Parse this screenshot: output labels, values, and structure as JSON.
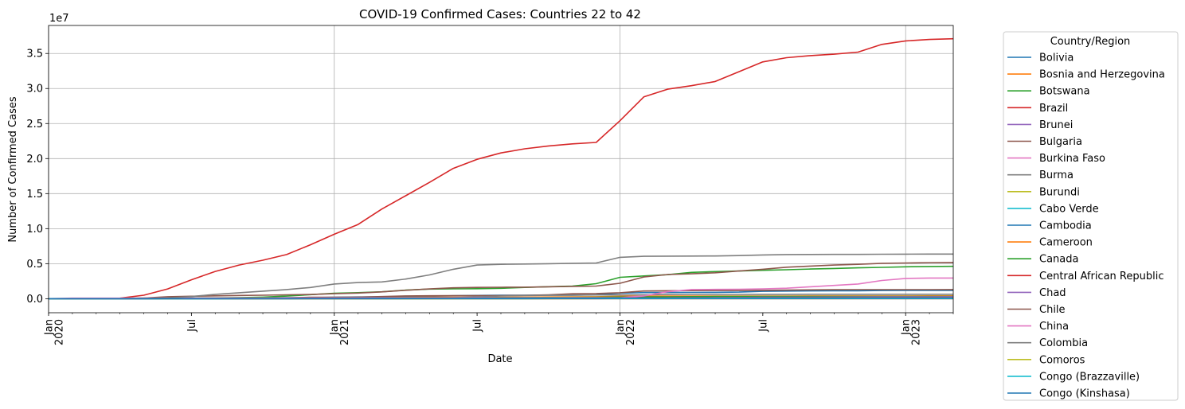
{
  "chart_data": {
    "type": "line",
    "title": "COVID-19 Confirmed Cases: Countries 22 to 42",
    "xlabel": "Date",
    "ylabel": "Number of Confirmed Cases",
    "y_offset_label": "1e7",
    "ylim": [
      -2000000,
      39000000
    ],
    "yticks": [
      {
        "value": 0,
        "label": "0.0"
      },
      {
        "value": 5000000,
        "label": "0.5"
      },
      {
        "value": 10000000,
        "label": "1.0"
      },
      {
        "value": 15000000,
        "label": "1.5"
      },
      {
        "value": 20000000,
        "label": "2.0"
      },
      {
        "value": 25000000,
        "label": "2.5"
      },
      {
        "value": 30000000,
        "label": "3.0"
      },
      {
        "value": 35000000,
        "label": "3.5"
      }
    ],
    "xlim": [
      "2020-01",
      "2023-03"
    ],
    "xticks": [
      {
        "date": "2020-01",
        "label": "Jan",
        "year": "2020"
      },
      {
        "date": "2020-07",
        "label": "Jul",
        "year": ""
      },
      {
        "date": "2021-01",
        "label": "Jan",
        "year": "2021"
      },
      {
        "date": "2021-07",
        "label": "Jul",
        "year": ""
      },
      {
        "date": "2022-01",
        "label": "Jan",
        "year": "2022"
      },
      {
        "date": "2022-07",
        "label": "Jul",
        "year": ""
      },
      {
        "date": "2023-01",
        "label": "Jan",
        "year": "2023"
      }
    ],
    "grid": true,
    "legend": {
      "title": "Country/Region",
      "placement": "outside right"
    },
    "x": [
      "2020-01",
      "2020-02",
      "2020-03",
      "2020-04",
      "2020-05",
      "2020-06",
      "2020-07",
      "2020-08",
      "2020-09",
      "2020-10",
      "2020-11",
      "2020-12",
      "2021-01",
      "2021-02",
      "2021-03",
      "2021-04",
      "2021-05",
      "2021-06",
      "2021-07",
      "2021-08",
      "2021-09",
      "2021-10",
      "2021-11",
      "2021-12",
      "2022-01",
      "2022-02",
      "2022-03",
      "2022-04",
      "2022-05",
      "2022-06",
      "2022-07",
      "2022-08",
      "2022-09",
      "2022-10",
      "2022-11",
      "2022-12",
      "2023-01",
      "2023-02",
      "2023-03"
    ],
    "series": [
      {
        "name": "Bolivia",
        "color": "#1f77b4",
        "values": [
          0,
          0,
          0,
          0,
          10000,
          30000,
          70000,
          110000,
          130000,
          140000,
          145000,
          160000,
          200000,
          250000,
          270000,
          300000,
          350000,
          420000,
          470000,
          490000,
          500000,
          505000,
          515000,
          560000,
          780000,
          870000,
          890000,
          900000,
          910000,
          940000,
          1050000,
          1090000,
          1110000,
          1130000,
          1140000,
          1170000,
          1190000,
          1195000,
          1197000
        ]
      },
      {
        "name": "Bosnia and Herzegovina",
        "color": "#ff7f0e",
        "values": [
          0,
          0,
          0,
          1000,
          2000,
          3000,
          10000,
          20000,
          30000,
          50000,
          90000,
          110000,
          120000,
          130000,
          170000,
          190000,
          200000,
          205000,
          206000,
          207000,
          230000,
          250000,
          270000,
          280000,
          340000,
          370000,
          375000,
          377000,
          378000,
          380000,
          385000,
          390000,
          395000,
          398000,
          400000,
          401000,
          402000,
          403000,
          403500
        ]
      },
      {
        "name": "Botswana",
        "color": "#2ca02c",
        "values": [
          0,
          0,
          0,
          0,
          0,
          0,
          1000,
          2000,
          3000,
          6000,
          10000,
          14000,
          23000,
          32000,
          40000,
          44000,
          50000,
          60000,
          100000,
          150000,
          170000,
          180000,
          190000,
          205000,
          240000,
          260000,
          265000,
          295000,
          315000,
          322000,
          324000,
          325000,
          326000,
          326500,
          327000,
          328000,
          329000,
          329500,
          330000
        ]
      },
      {
        "name": "Brazil",
        "color": "#d62728",
        "values": [
          0,
          0,
          5000,
          80000,
          500000,
          1400000,
          2700000,
          3900000,
          4800000,
          5500000,
          6300000,
          7700000,
          9200000,
          10600000,
          12800000,
          14700000,
          16600000,
          18600000,
          19900000,
          20800000,
          21400000,
          21800000,
          22100000,
          22300000,
          25400000,
          28800000,
          29900000,
          30400000,
          31000000,
          32400000,
          33800000,
          34400000,
          34700000,
          34900000,
          35200000,
          36300000,
          36800000,
          37000000,
          37100000
        ]
      },
      {
        "name": "Brunei",
        "color": "#9467bd",
        "values": [
          0,
          0,
          0,
          0,
          0,
          0,
          0,
          0,
          0,
          0,
          0,
          0,
          0,
          0,
          0,
          0,
          0,
          0,
          0,
          0,
          0,
          5000,
          14000,
          15000,
          16000,
          30000,
          140000,
          150000,
          160000,
          170000,
          200000,
          220000,
          230000,
          240000,
          250000,
          260000,
          270000,
          275000,
          278000
        ]
      },
      {
        "name": "Bulgaria",
        "color": "#8c564b",
        "values": [
          0,
          0,
          0,
          1000,
          2000,
          4000,
          10000,
          15000,
          20000,
          30000,
          120000,
          200000,
          215000,
          230000,
          300000,
          400000,
          420000,
          425000,
          430000,
          440000,
          480000,
          560000,
          700000,
          740000,
          850000,
          1100000,
          1140000,
          1155000,
          1165000,
          1170000,
          1190000,
          1230000,
          1260000,
          1280000,
          1290000,
          1295000,
          1298000,
          1299000,
          1300000
        ]
      },
      {
        "name": "Burkina Faso",
        "color": "#e377c2",
        "values": [
          0,
          0,
          0,
          600,
          800,
          900,
          1100,
          1300,
          1500,
          2500,
          3000,
          6000,
          11000,
          12000,
          13000,
          13300,
          13500,
          13600,
          13800,
          14000,
          14400,
          15200,
          16500,
          18000,
          20000,
          20500,
          20800,
          21000,
          21000,
          21100,
          21400,
          21600,
          21700,
          21800,
          22000,
          22000,
          22100,
          22100,
          22100
        ]
      },
      {
        "name": "Burma",
        "color": "#7f7f7f",
        "values": [
          0,
          0,
          0,
          100,
          200,
          300,
          350,
          400,
          5000,
          40000,
          80000,
          120000,
          130000,
          140000,
          142000,
          143000,
          144000,
          145000,
          250000,
          380000,
          450000,
          490000,
          510000,
          530000,
          535000,
          550000,
          600000,
          610000,
          612000,
          613000,
          620000,
          625000,
          630000,
          633000,
          634000,
          635000,
          636000,
          637000,
          637000
        ]
      },
      {
        "name": "Burundi",
        "color": "#bcbd22",
        "values": [
          0,
          0,
          0,
          10,
          40,
          100,
          300,
          400,
          500,
          600,
          700,
          800,
          1500,
          2200,
          2700,
          3500,
          4500,
          5500,
          6500,
          10000,
          15000,
          18000,
          20000,
          22000,
          30000,
          40000,
          42000,
          42500,
          43000,
          44000,
          46000,
          48000,
          49000,
          50000,
          50500,
          51000,
          52000,
          53000,
          54000
        ]
      },
      {
        "name": "Cabo Verde",
        "color": "#17becf",
        "values": [
          0,
          0,
          0,
          100,
          500,
          1000,
          2000,
          3000,
          5000,
          7000,
          10000,
          11500,
          14000,
          16000,
          19000,
          23000,
          28000,
          32000,
          34000,
          35000,
          36000,
          37500,
          38000,
          38500,
          50000,
          55000,
          56000,
          56500,
          57000,
          58000,
          60000,
          61000,
          62000,
          62500,
          63000,
          63300,
          63500,
          63600,
          63700
        ]
      },
      {
        "name": "Cambodia",
        "color": "#1f77b4",
        "values": [
          0,
          1,
          1,
          120,
          122,
          130,
          180,
          270,
          280,
          290,
          300,
          370,
          450,
          500,
          2000,
          10000,
          25000,
          42000,
          70000,
          95000,
          110000,
          118000,
          120000,
          120500,
          121000,
          125000,
          133000,
          136000,
          136200,
          136300,
          136500,
          137000,
          137500,
          137800,
          138000,
          138200,
          138400,
          138600,
          138700
        ]
      },
      {
        "name": "Cameroon",
        "color": "#ff7f0e",
        "values": [
          0,
          0,
          0,
          1500,
          5000,
          12000,
          17000,
          19000,
          20500,
          21500,
          24000,
          26000,
          29000,
          35000,
          50000,
          65000,
          78000,
          80000,
          81000,
          83000,
          90000,
          100000,
          106000,
          108000,
          113000,
          118000,
          119000,
          119500,
          120000,
          121000,
          123000,
          123500,
          124000,
          124300,
          124500,
          124700,
          124800,
          124900,
          125000
        ]
      },
      {
        "name": "Canada",
        "color": "#2ca02c",
        "values": [
          0,
          20,
          500,
          50000,
          90000,
          105000,
          115000,
          125000,
          150000,
          230000,
          370000,
          580000,
          780000,
          860000,
          990000,
          1220000,
          1370000,
          1410000,
          1430000,
          1490000,
          1610000,
          1710000,
          1790000,
          2150000,
          3050000,
          3250000,
          3430000,
          3760000,
          3870000,
          3950000,
          4050000,
          4130000,
          4230000,
          4310000,
          4410000,
          4470000,
          4550000,
          4600000,
          4620000
        ]
      },
      {
        "name": "Central African Republic",
        "color": "#d62728",
        "values": [
          0,
          0,
          0,
          50,
          1000,
          3500,
          4600,
          4700,
          4800,
          4900,
          5000,
          5000,
          5100,
          5400,
          5600,
          6400,
          7000,
          7100,
          11000,
          11200,
          11400,
          11600,
          11700,
          12000,
          13000,
          14000,
          14300,
          14400,
          14500,
          14600,
          14800,
          14900,
          15000,
          15100,
          15200,
          15300,
          15300,
          15300,
          15300
        ]
      },
      {
        "name": "Chad",
        "color": "#9467bd",
        "values": [
          0,
          0,
          0,
          50,
          800,
          900,
          950,
          1000,
          1100,
          1400,
          1700,
          2100,
          3000,
          4000,
          4500,
          4800,
          4900,
          5000,
          5000,
          5000,
          5050,
          5100,
          5300,
          6000,
          7000,
          7300,
          7350,
          7400,
          7450,
          7500,
          7550,
          7600,
          7650,
          7660,
          7670,
          7680,
          7690,
          7695,
          7700
        ]
      },
      {
        "name": "Chile",
        "color": "#8c564b",
        "values": [
          0,
          0,
          2000,
          15000,
          100000,
          280000,
          350000,
          410000,
          460000,
          500000,
          550000,
          600000,
          720000,
          810000,
          980000,
          1200000,
          1400000,
          1560000,
          1610000,
          1630000,
          1650000,
          1700000,
          1760000,
          1800000,
          2200000,
          3100000,
          3450000,
          3550000,
          3700000,
          3950000,
          4200000,
          4500000,
          4650000,
          4800000,
          4900000,
          5050000,
          5100000,
          5150000,
          5180000
        ]
      },
      {
        "name": "China",
        "color": "#e377c2",
        "values": [
          10000,
          80000,
          82000,
          84000,
          84500,
          85000,
          88000,
          90000,
          90500,
          91000,
          92000,
          96000,
          100000,
          101000,
          102000,
          103000,
          104000,
          106000,
          110000,
          115000,
          120000,
          125000,
          130000,
          135000,
          140000,
          400000,
          1000000,
          1300000,
          1330000,
          1350000,
          1400000,
          1500000,
          1700000,
          1900000,
          2100000,
          2600000,
          2900000,
          2950000,
          2950000
        ]
      },
      {
        "name": "Colombia",
        "color": "#7f7f7f",
        "values": [
          0,
          0,
          1000,
          7000,
          30000,
          100000,
          300000,
          620000,
          850000,
          1080000,
          1300000,
          1600000,
          2100000,
          2300000,
          2400000,
          2800000,
          3400000,
          4200000,
          4800000,
          4900000,
          4950000,
          5000000,
          5050000,
          5100000,
          5900000,
          6050000,
          6080000,
          6090000,
          6100000,
          6150000,
          6250000,
          6300000,
          6310000,
          6320000,
          6330000,
          6350000,
          6360000,
          6365000,
          6370000
        ]
      },
      {
        "name": "Comoros",
        "color": "#bcbd22",
        "values": [
          0,
          0,
          0,
          0,
          100,
          200,
          350,
          400,
          450,
          500,
          600,
          650,
          3000,
          3500,
          3700,
          3800,
          3850,
          3900,
          4000,
          4100,
          4200,
          4300,
          4400,
          7500,
          8000,
          8100,
          8150,
          8200,
          8250,
          8300,
          8400,
          8500,
          8600,
          8700,
          8800,
          8900,
          9000,
          9050,
          9100
        ]
      },
      {
        "name": "Congo (Brazzaville)",
        "color": "#17becf",
        "values": [
          0,
          0,
          20,
          200,
          500,
          1200,
          3500,
          4500,
          5000,
          5300,
          5600,
          6900,
          8000,
          9000,
          10000,
          10500,
          11500,
          12500,
          13000,
          13500,
          14000,
          16000,
          19000,
          21000,
          23000,
          24000,
          24100,
          24200,
          24300,
          24400,
          24500,
          24600,
          24800,
          25000,
          25100,
          25200,
          25300,
          25300,
          25300
        ]
      },
      {
        "name": "Congo (Kinshasa)",
        "color": "#1f77b4",
        "values": [
          0,
          0,
          100,
          500,
          3000,
          7000,
          9000,
          10000,
          10500,
          11000,
          13000,
          17000,
          23000,
          25500,
          28000,
          29500,
          31000,
          42000,
          50000,
          53000,
          56000,
          57000,
          58000,
          68000,
          85000,
          86000,
          87000,
          88000,
          89000,
          91000,
          93000,
          94000,
          94500,
          95000,
          95500,
          96000,
          96500,
          97000,
          97500
        ]
      }
    ]
  }
}
